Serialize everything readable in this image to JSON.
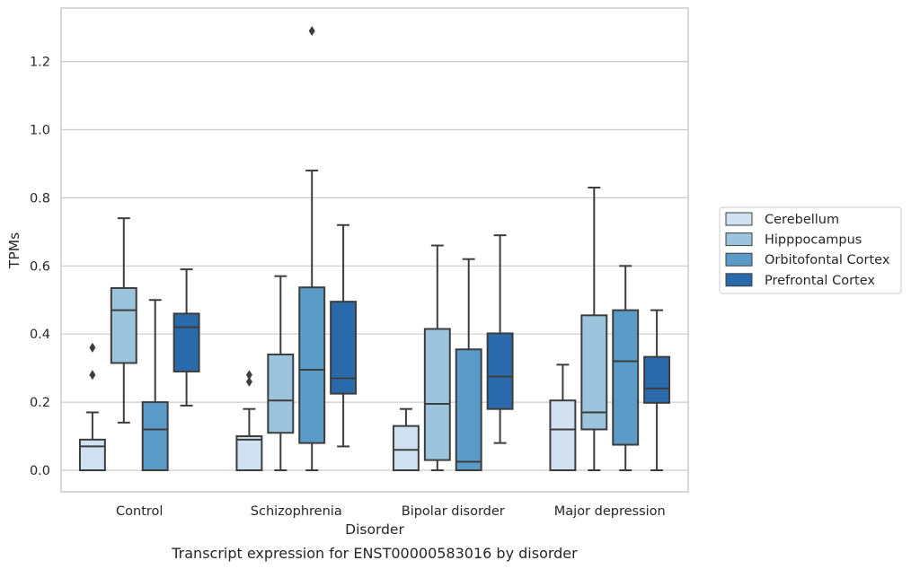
{
  "chart_data": {
    "type": "box",
    "title": "",
    "caption": "Transcript expression for ENST00000583016 by disorder",
    "xlabel": "Disorder",
    "ylabel": "TPMs",
    "ylim": [
      -0.065,
      1.36
    ],
    "yticks": [
      "0.0",
      "0.2",
      "0.4",
      "0.6",
      "0.8",
      "1.0",
      "1.2"
    ],
    "categories": [
      "Control",
      "Schizophrenia",
      "Bipolar disorder",
      "Major depression"
    ],
    "grid": "horizontal",
    "legend_position": "right",
    "series": [
      {
        "name": "Cerebellum",
        "color": "#d1e1f1",
        "boxes": [
          {
            "whisker_low": 0.0,
            "q1": 0.0,
            "median": 0.07,
            "q3": 0.09,
            "whisker_high": 0.17,
            "outliers": [
              0.28,
              0.36
            ]
          },
          {
            "whisker_low": 0.0,
            "q1": 0.0,
            "median": 0.09,
            "q3": 0.1,
            "whisker_high": 0.18,
            "outliers": [
              0.26,
              0.28
            ]
          },
          {
            "whisker_low": 0.0,
            "q1": 0.0,
            "median": 0.06,
            "q3": 0.13,
            "whisker_high": 0.18,
            "outliers": []
          },
          {
            "whisker_low": 0.0,
            "q1": 0.0,
            "median": 0.12,
            "q3": 0.205,
            "whisker_high": 0.31,
            "outliers": []
          }
        ]
      },
      {
        "name": "Hipppocampus",
        "color": "#9cc4dd",
        "boxes": [
          {
            "whisker_low": 0.14,
            "q1": 0.315,
            "median": 0.47,
            "q3": 0.535,
            "whisker_high": 0.74,
            "outliers": []
          },
          {
            "whisker_low": 0.0,
            "q1": 0.11,
            "median": 0.205,
            "q3": 0.34,
            "whisker_high": 0.57,
            "outliers": []
          },
          {
            "whisker_low": 0.0,
            "q1": 0.03,
            "median": 0.195,
            "q3": 0.415,
            "whisker_high": 0.66,
            "outliers": []
          },
          {
            "whisker_low": 0.0,
            "q1": 0.12,
            "median": 0.17,
            "q3": 0.455,
            "whisker_high": 0.83,
            "outliers": []
          }
        ]
      },
      {
        "name": "Orbitofontal Cortex",
        "color": "#5b9bc8",
        "boxes": [
          {
            "whisker_low": 0.0,
            "q1": 0.0,
            "median": 0.12,
            "q3": 0.2,
            "whisker_high": 0.5,
            "outliers": []
          },
          {
            "whisker_low": 0.0,
            "q1": 0.08,
            "median": 0.295,
            "q3": 0.537,
            "whisker_high": 0.88,
            "outliers": [
              1.29
            ]
          },
          {
            "whisker_low": 0.0,
            "q1": 0.0,
            "median": 0.025,
            "q3": 0.355,
            "whisker_high": 0.62,
            "outliers": []
          },
          {
            "whisker_low": 0.0,
            "q1": 0.075,
            "median": 0.32,
            "q3": 0.47,
            "whisker_high": 0.6,
            "outliers": []
          }
        ]
      },
      {
        "name": "Prefrontal Cortex",
        "color": "#2a6aab",
        "boxes": [
          {
            "whisker_low": 0.19,
            "q1": 0.29,
            "median": 0.42,
            "q3": 0.46,
            "whisker_high": 0.59,
            "outliers": []
          },
          {
            "whisker_low": 0.07,
            "q1": 0.225,
            "median": 0.27,
            "q3": 0.495,
            "whisker_high": 0.72,
            "outliers": []
          },
          {
            "whisker_low": 0.08,
            "q1": 0.18,
            "median": 0.275,
            "q3": 0.402,
            "whisker_high": 0.69,
            "outliers": []
          },
          {
            "whisker_low": 0.0,
            "q1": 0.198,
            "median": 0.24,
            "q3": 0.333,
            "whisker_high": 0.47,
            "outliers": []
          }
        ]
      }
    ]
  }
}
